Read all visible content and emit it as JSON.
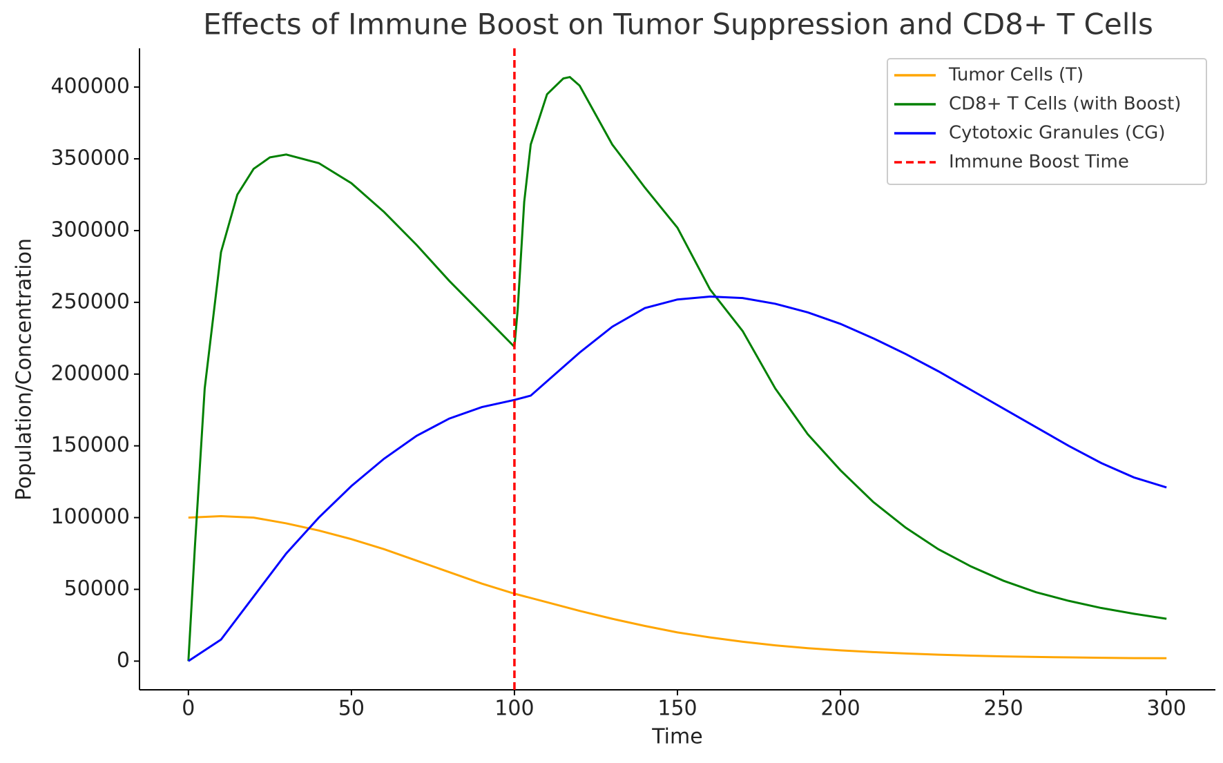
{
  "chart_data": {
    "type": "line",
    "title": "Effects of Immune Boost on Tumor Suppression and CD8+ T Cells",
    "x_label": "Time",
    "y_label": "Population/Concentration",
    "xlim": [
      -15,
      315
    ],
    "ylim": [
      -20000,
      427000
    ],
    "xticks": [
      0,
      50,
      100,
      150,
      200,
      250,
      300
    ],
    "yticks": [
      0,
      50000,
      100000,
      150000,
      200000,
      250000,
      300000,
      350000,
      400000
    ],
    "legend": "upper right",
    "series": [
      {
        "name": "Tumor Cells (T)",
        "color": "orange",
        "x": [
          0,
          10,
          20,
          30,
          40,
          50,
          60,
          70,
          80,
          90,
          100,
          110,
          120,
          130,
          140,
          150,
          160,
          170,
          180,
          190,
          200,
          210,
          220,
          230,
          240,
          250,
          260,
          270,
          280,
          290,
          300
        ],
        "values": [
          100000,
          101000,
          100000,
          96000,
          91000,
          85000,
          78000,
          70000,
          62000,
          54000,
          47000,
          41000,
          35000,
          29500,
          24500,
          20000,
          16500,
          13500,
          11000,
          9000,
          7500,
          6300,
          5300,
          4500,
          3800,
          3300,
          2900,
          2600,
          2300,
          2100,
          2000
        ]
      },
      {
        "name": "CD8+ T Cells (with Boost)",
        "color": "green",
        "x": [
          0,
          2,
          5,
          10,
          15,
          20,
          25,
          30,
          40,
          50,
          60,
          70,
          80,
          90,
          100,
          101,
          103,
          105,
          110,
          115,
          117,
          120,
          130,
          140,
          150,
          160,
          170,
          180,
          190,
          200,
          210,
          220,
          230,
          240,
          250,
          260,
          270,
          280,
          290,
          300
        ],
        "values": [
          0,
          80000,
          190000,
          285000,
          325000,
          343000,
          351000,
          353000,
          347000,
          333000,
          313000,
          290000,
          265000,
          242000,
          219000,
          245000,
          320000,
          360000,
          395000,
          406000,
          407000,
          401000,
          360000,
          330000,
          302000,
          259000,
          230000,
          190000,
          158000,
          133000,
          111000,
          93000,
          78000,
          66000,
          56000,
          48000,
          42000,
          37000,
          33000,
          29500
        ]
      },
      {
        "name": "Cytotoxic Granules (CG)",
        "color": "blue",
        "x": [
          0,
          10,
          20,
          30,
          40,
          50,
          60,
          70,
          80,
          90,
          100,
          105,
          110,
          120,
          130,
          140,
          150,
          160,
          170,
          180,
          190,
          200,
          210,
          220,
          230,
          240,
          250,
          260,
          270,
          280,
          290,
          300
        ],
        "values": [
          0,
          15000,
          45000,
          75000,
          100000,
          122000,
          141000,
          157000,
          169000,
          177000,
          182000,
          185000,
          195000,
          215000,
          233000,
          246000,
          252000,
          254000,
          253000,
          249000,
          243000,
          235000,
          225000,
          214000,
          202000,
          189000,
          176000,
          163000,
          150000,
          138000,
          128000,
          121000
        ]
      }
    ],
    "vline": {
      "name": "Immune Boost Time",
      "x": 100,
      "color": "red"
    }
  }
}
